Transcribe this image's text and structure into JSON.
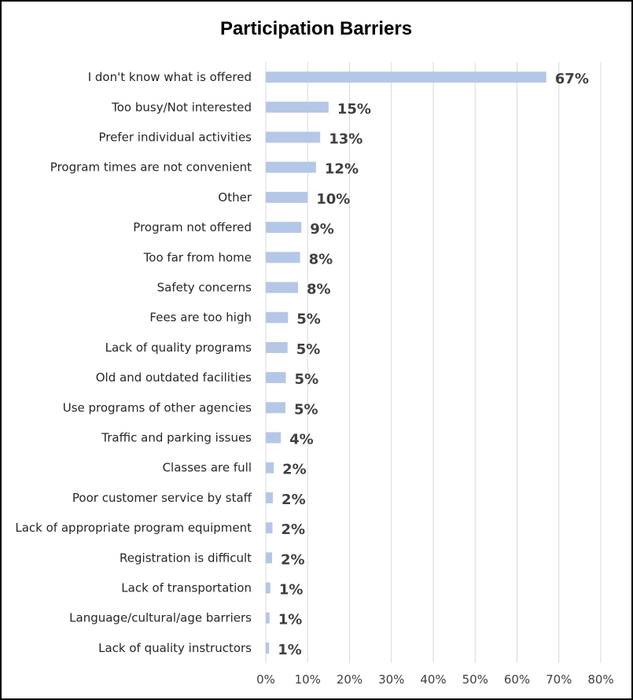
{
  "chart_data": {
    "type": "bar",
    "orientation": "horizontal",
    "title": "Participation Barriers",
    "xlabel": "",
    "ylabel": "",
    "xlim": [
      0,
      80
    ],
    "grid": true,
    "legend": "none",
    "bar_color": "#b4c7e7",
    "ticks": [
      "0%",
      "10%",
      "20%",
      "30%",
      "40%",
      "50%",
      "60%",
      "70%",
      "80%"
    ],
    "categories": [
      "I don't know what is offered",
      "Too busy/Not interested",
      "Prefer individual activities",
      "Program times are not convenient",
      "Other",
      "Program not offered",
      "Too far from home",
      "Safety concerns",
      "Fees are too high",
      "Lack of quality programs",
      "Old and outdated facilities",
      "Use programs of other agencies",
      "Traffic and parking issues",
      "Classes are full",
      "Poor customer service by staff",
      "Lack of appropriate program equipment",
      "Registration is difficult",
      "Lack of transportation",
      "Language/cultural/age barriers",
      "Lack of quality instructors"
    ],
    "values": [
      67,
      15,
      13,
      12,
      10,
      8.5,
      8.2,
      7.7,
      5.3,
      5.2,
      4.8,
      4.7,
      3.6,
      1.9,
      1.7,
      1.6,
      1.5,
      1.1,
      0.9,
      0.8
    ],
    "labels": [
      "67%",
      "15%",
      "13%",
      "12%",
      "10%",
      "9%",
      "8%",
      "8%",
      "5%",
      "5%",
      "5%",
      "5%",
      "4%",
      "2%",
      "2%",
      "2%",
      "2%",
      "1%",
      "1%",
      "1%"
    ]
  }
}
